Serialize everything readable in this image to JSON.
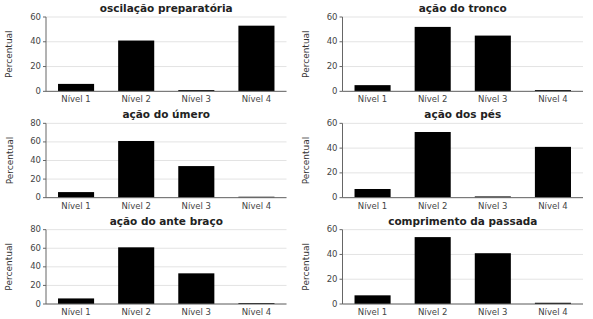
{
  "chart_data": [
    {
      "type": "bar",
      "title": "oscilação preparatória",
      "categories": [
        "Nível 1",
        "Nível 2",
        "Nível 3",
        "Nível 4"
      ],
      "values": [
        6,
        41,
        1,
        53
      ],
      "color": "#000000",
      "ylabel": "Percentual",
      "ylim": [
        0,
        60
      ],
      "yticks": [
        0,
        20,
        40,
        60
      ]
    },
    {
      "type": "bar",
      "title": "ação do tronco",
      "categories": [
        "Nível 1",
        "Nível 2",
        "Nível 3",
        "Nível 4"
      ],
      "values": [
        5,
        52,
        45,
        1
      ],
      "color": "#000000",
      "ylabel": "Percentual",
      "ylim": [
        0,
        60
      ],
      "yticks": [
        0,
        20,
        40,
        60
      ]
    },
    {
      "type": "bar",
      "title": "ação do úmero",
      "categories": [
        "Nível 1",
        "Nível 2",
        "Nível 3",
        "Nível 4"
      ],
      "values": [
        6,
        61,
        34,
        1
      ],
      "color": "#000000",
      "ylabel": "Percentual",
      "ylim": [
        0,
        80
      ],
      "yticks": [
        0,
        20,
        40,
        60,
        80
      ]
    },
    {
      "type": "bar",
      "title": "ação dos pés",
      "categories": [
        "Nível 1",
        "Nível 2",
        "Nível 3",
        "Nível 4"
      ],
      "values": [
        7,
        53,
        1,
        41
      ],
      "color": "#000000",
      "ylabel": "Percentual",
      "ylim": [
        0,
        60
      ],
      "yticks": [
        0,
        20,
        40,
        60
      ]
    },
    {
      "type": "bar",
      "title": "ação do ante braço",
      "categories": [
        "Nível 1",
        "Nível 2",
        "Nível 3",
        "Nível 4"
      ],
      "values": [
        6,
        61,
        33,
        1
      ],
      "color": "#000000",
      "ylabel": "Percentual",
      "ylim": [
        0,
        80
      ],
      "yticks": [
        0,
        20,
        40,
        60,
        80
      ]
    },
    {
      "type": "bar",
      "title": "comprimento da passada",
      "categories": [
        "Nível 1",
        "Nível 2",
        "Nível 3",
        "Nível 4"
      ],
      "values": [
        7,
        54,
        41,
        1
      ],
      "color": "#000000",
      "ylabel": "Percentual",
      "ylim": [
        0,
        60
      ],
      "yticks": [
        0,
        20,
        40,
        60
      ]
    }
  ]
}
